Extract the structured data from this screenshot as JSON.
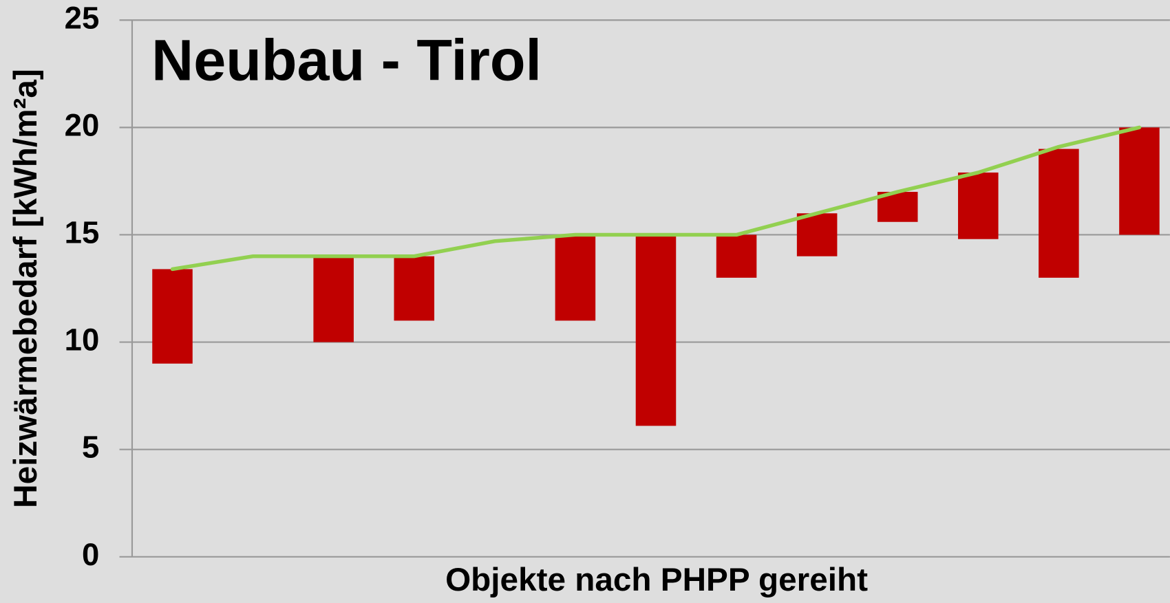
{
  "chart_data": {
    "type": "range-bar-line",
    "title": "Neubau - Tirol",
    "y_label": "Heizwärmebedarf [kWh/m²a]",
    "x_label": "Objekte nach PHPP gereiht",
    "categories": [
      null,
      null,
      null,
      null,
      null,
      null,
      null,
      null,
      null,
      null,
      null,
      null,
      null
    ],
    "bars": {
      "color": "#c00000",
      "values": [
        [
          9,
          13.4
        ],
        null,
        [
          10,
          14
        ],
        [
          11,
          14
        ],
        null,
        [
          11,
          15
        ],
        [
          6.1,
          15
        ],
        [
          13,
          15
        ],
        [
          14,
          16
        ],
        [
          15.6,
          17
        ],
        [
          14.8,
          17.9
        ],
        [
          13,
          19
        ],
        [
          15,
          20
        ]
      ]
    },
    "line": {
      "color": "#92d050",
      "values": [
        13.4,
        14,
        14,
        14,
        14.7,
        15,
        15,
        15,
        16,
        17,
        17.9,
        19.1,
        20
      ]
    },
    "ylim": [
      0,
      25
    ],
    "yticks": [
      0,
      5,
      10,
      15,
      20,
      25
    ],
    "grid": true
  }
}
